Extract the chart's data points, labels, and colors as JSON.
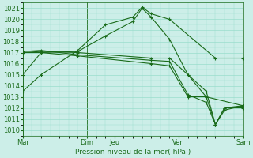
{
  "background_color": "#cceee8",
  "grid_color": "#99ddcc",
  "line_color": "#1a6b1a",
  "xlabel": "Pression niveau de la mer( hPa )",
  "ylim": [
    1009.5,
    1021.5
  ],
  "xlim": [
    0,
    24
  ],
  "series": [
    {
      "x": [
        0,
        2,
        6,
        9,
        12,
        13,
        14,
        16,
        21,
        24
      ],
      "y": [
        1013.5,
        1015.0,
        1017.2,
        1019.5,
        1020.2,
        1021.1,
        1020.5,
        1020.0,
        1016.5,
        1016.5
      ]
    },
    {
      "x": [
        0,
        2,
        6,
        9,
        12,
        13,
        14,
        16,
        18,
        20,
        24
      ],
      "y": [
        1015.0,
        1017.0,
        1017.1,
        1018.5,
        1019.8,
        1021.0,
        1020.2,
        1018.2,
        1015.0,
        1013.0,
        1012.2
      ]
    },
    {
      "x": [
        0,
        2,
        6,
        14,
        16,
        18,
        20,
        21,
        22,
        24
      ],
      "y": [
        1017.0,
        1017.1,
        1017.0,
        1016.5,
        1016.5,
        1015.0,
        1013.5,
        1010.5,
        1012.0,
        1012.2
      ]
    },
    {
      "x": [
        0,
        2,
        6,
        14,
        16,
        18,
        20,
        21,
        22,
        24
      ],
      "y": [
        1017.1,
        1017.2,
        1016.8,
        1016.3,
        1016.2,
        1013.2,
        1012.5,
        1010.5,
        1011.8,
        1012.2
      ]
    },
    {
      "x": [
        0,
        2,
        6,
        14,
        16,
        18,
        20,
        21,
        22,
        24
      ],
      "y": [
        1017.0,
        1017.0,
        1016.7,
        1016.0,
        1015.8,
        1013.0,
        1013.0,
        1010.5,
        1012.0,
        1012.0
      ]
    }
  ],
  "major_xtick_positions": [
    0,
    7,
    10,
    17,
    24
  ],
  "major_xtick_labels": [
    "Mar",
    "Dim",
    "Jeu",
    "Ven",
    "Sam"
  ],
  "vline_positions": [
    0,
    7,
    10,
    17,
    24
  ]
}
